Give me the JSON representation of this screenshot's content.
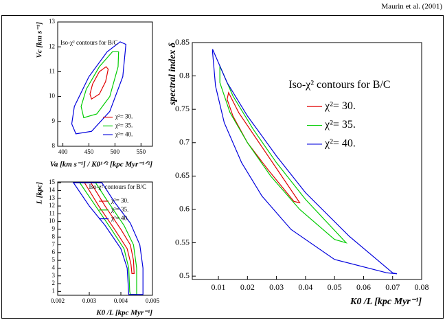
{
  "header": "Maurin et al. (2001)",
  "chart_data": [
    {
      "type": "contour",
      "ylabel": "Vc [km s⁻¹]",
      "xlabel": "Va [km s⁻¹] / K0¹ᐟ² [kpc Myr⁻¹ᐟ²]",
      "annotation": "Iso-χ² contours for B/C",
      "legend": "lower right",
      "xlim": [
        390,
        572
      ],
      "xticks": [
        400,
        450,
        500,
        550
      ],
      "ylim": [
        8,
        13
      ],
      "yticks": [
        8,
        9,
        10,
        11,
        12,
        13
      ],
      "series": [
        {
          "name": "χ²= 30.",
          "color": "#e00000",
          "x": [
            455,
            470,
            482,
            487,
            483,
            470,
            457,
            452
          ],
          "y": [
            9.9,
            10.1,
            10.6,
            11.1,
            11.2,
            11.0,
            10.5,
            10.1
          ]
        },
        {
          "name": "χ²= 35.",
          "color": "#00cc00",
          "x": [
            440,
            465,
            490,
            506,
            507,
            495,
            470,
            445,
            435
          ],
          "y": [
            9.15,
            9.3,
            10.0,
            11.2,
            11.8,
            11.8,
            11.2,
            10.3,
            9.6
          ]
        },
        {
          "name": "χ²= 40.",
          "color": "#0000dd",
          "x": [
            425,
            455,
            490,
            515,
            521,
            510,
            485,
            450,
            422,
            417
          ],
          "y": [
            8.5,
            8.6,
            9.4,
            10.8,
            12.1,
            12.2,
            11.8,
            10.8,
            9.6,
            8.9
          ]
        }
      ]
    },
    {
      "type": "contour",
      "ylabel": "L [kpc]",
      "xlabel": "K0 /L [kpc Myr⁻¹]",
      "annotation": "Iso-χ² contours for B/C",
      "legend": "upper right",
      "xlim": [
        0.002,
        0.005
      ],
      "xticks": [
        0.002,
        0.003,
        0.004,
        0.005
      ],
      "ylim": [
        0.5,
        15.1
      ],
      "yticks": [
        1,
        2,
        3,
        4,
        5,
        6,
        7,
        8,
        9,
        10,
        11,
        12,
        13,
        14,
        15
      ],
      "series": [
        {
          "name": "χ²= 30.",
          "color": "#e00000",
          "x": [
            0.00285,
            0.0033,
            0.0038,
            0.0042,
            0.00432,
            0.00435,
            0.00442,
            0.0044,
            0.0043,
            0.004,
            0.0035,
            0.00305
          ],
          "y": [
            15,
            12,
            9,
            6.5,
            4.5,
            3.3,
            3.3,
            5,
            7,
            9,
            12,
            15
          ]
        },
        {
          "name": "χ²= 35.",
          "color": "#00cc00",
          "x": [
            0.0027,
            0.0032,
            0.0037,
            0.0041,
            0.00425,
            0.00428,
            0.0043,
            0.0045,
            0.0045,
            0.0044,
            0.0041,
            0.0036,
            0.0032
          ],
          "y": [
            15,
            12,
            9,
            6.5,
            4,
            1,
            0.6,
            0.6,
            4,
            7,
            9.5,
            12.5,
            15
          ]
        },
        {
          "name": "χ²= 40.",
          "color": "#0000dd",
          "x": [
            0.0025,
            0.003,
            0.0035,
            0.004,
            0.0042,
            0.00425,
            0.0047,
            0.0047,
            0.0046,
            0.0043,
            0.0038,
            0.0034
          ],
          "y": [
            15,
            12,
            9.5,
            6.5,
            4,
            0.6,
            0.6,
            4,
            7,
            9.8,
            12.5,
            15
          ]
        }
      ]
    },
    {
      "type": "contour",
      "ylabel": "spectral index   δ",
      "xlabel": "K0 /L [kpc Myr⁻¹]",
      "annotation": "Iso-χ² contours for B/C",
      "legend": "center right",
      "xlim": [
        0.001,
        0.08
      ],
      "xticks": [
        0.01,
        0.02,
        0.03,
        0.04,
        0.05,
        0.06,
        0.07,
        0.08
      ],
      "ylim": [
        0.495,
        0.85
      ],
      "yticks": [
        0.5,
        0.55,
        0.6,
        0.65,
        0.7,
        0.75,
        0.8,
        0.85
      ],
      "series": [
        {
          "name": "χ²= 30.",
          "color": "#e00000",
          "x": [
            0.0135,
            0.017,
            0.024,
            0.031,
            0.038,
            0.036,
            0.027,
            0.02,
            0.015,
            0.013
          ],
          "y": [
            0.775,
            0.745,
            0.7,
            0.655,
            0.61,
            0.612,
            0.66,
            0.7,
            0.74,
            0.765
          ]
        },
        {
          "name": "χ²= 35.",
          "color": "#00cc00",
          "x": [
            0.0105,
            0.015,
            0.022,
            0.03,
            0.04,
            0.054,
            0.05,
            0.038,
            0.028,
            0.02,
            0.014,
            0.0105
          ],
          "y": [
            0.815,
            0.77,
            0.72,
            0.67,
            0.615,
            0.55,
            0.555,
            0.6,
            0.65,
            0.7,
            0.745,
            0.79
          ]
        },
        {
          "name": "χ²= 40.",
          "color": "#0000dd",
          "x": [
            0.008,
            0.013,
            0.02,
            0.03,
            0.04,
            0.055,
            0.07,
            0.0715,
            0.068,
            0.05,
            0.035,
            0.025,
            0.018,
            0.012,
            0.009,
            0.008
          ],
          "y": [
            0.84,
            0.79,
            0.74,
            0.68,
            0.625,
            0.56,
            0.505,
            0.5035,
            0.505,
            0.525,
            0.57,
            0.62,
            0.67,
            0.73,
            0.785,
            0.835
          ]
        }
      ]
    }
  ]
}
